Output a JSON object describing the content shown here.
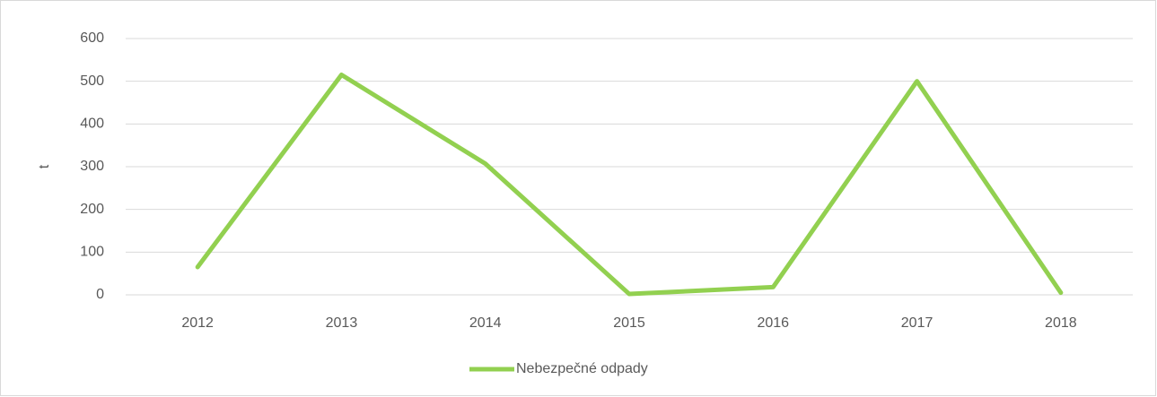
{
  "chart_data": {
    "type": "line",
    "y_label": "t",
    "categories": [
      "2012",
      "2013",
      "2014",
      "2015",
      "2016",
      "2017",
      "2018"
    ],
    "series": [
      {
        "name": "Nebezpečné odpady",
        "color": "#92d050",
        "values": [
          65,
          515,
          307,
          2,
          18,
          500,
          5
        ]
      }
    ],
    "ylim": [
      0,
      600
    ],
    "yticks": [
      0,
      100,
      200,
      300,
      400,
      500,
      600
    ],
    "grid": true,
    "legend": "bottom"
  }
}
